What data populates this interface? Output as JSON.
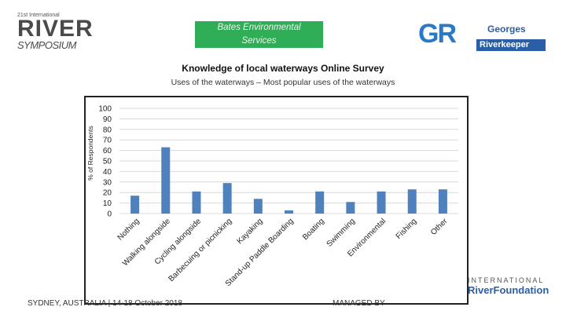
{
  "header": {
    "left_logo": {
      "small_text": "21st International",
      "big_text": "RIVER",
      "sub_text": "SYMPOSIUM"
    },
    "sponsor": {
      "line1": "Bates Environmental",
      "line2": "Services",
      "color": "#2fae57"
    },
    "right_logo": {
      "mark": "GR",
      "line1": "Georges",
      "line2": "Riverkeeper",
      "color": "#2a5fa8"
    }
  },
  "footer": {
    "left_text": "SYDNEY, AUSTRALIA | 14-18 October 2018",
    "mid_text": "MANAGED BY",
    "foundation_line1": "INTERNATIONAL",
    "foundation_line2": "RiverFoundation"
  },
  "chart_data": {
    "type": "bar",
    "title": "Knowledge of local waterways Online Survey",
    "subtitle": "Uses of the waterways – Most popular uses of the waterways",
    "xlabel": "",
    "ylabel": "% of Respondents",
    "ylim": [
      0,
      100
    ],
    "yticks": [
      0,
      10,
      20,
      30,
      40,
      50,
      60,
      70,
      80,
      90,
      100
    ],
    "grid": true,
    "bar_color": "#4f81bd",
    "categories": [
      "Nothing",
      "Walking alongside",
      "Cycling alongside",
      "Barbecuing or picnicking",
      "Kayaking",
      "Stand-up Paddle Boarding",
      "Boating",
      "Swimming",
      "Environmental",
      "Fishing",
      "Other"
    ],
    "values": [
      17,
      63,
      21,
      29,
      14,
      3,
      21,
      11,
      21,
      23,
      23
    ]
  }
}
